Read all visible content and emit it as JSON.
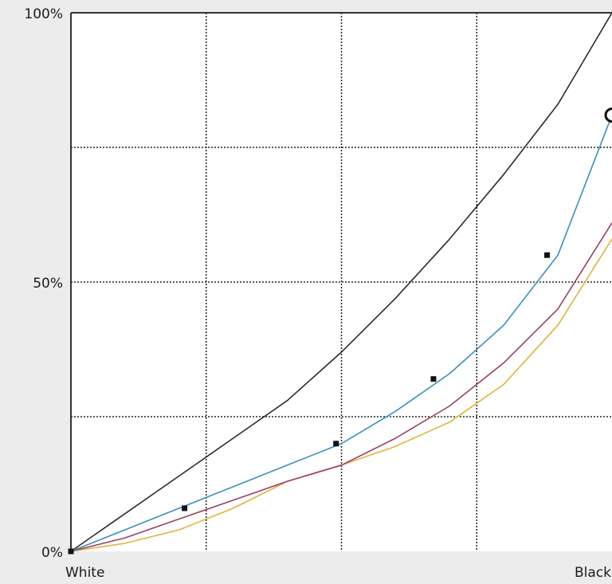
{
  "chart_data": {
    "type": "line",
    "title": "",
    "xlabel": "",
    "ylabel": "",
    "xlim": [
      0,
      100
    ],
    "ylim": [
      0,
      100
    ],
    "x_tick_labels": [
      {
        "x": 0,
        "label": "White"
      },
      {
        "x": 100,
        "label": "Black"
      }
    ],
    "y_tick_labels": [
      {
        "y": 100,
        "label": "100%"
      },
      {
        "y": 50,
        "label": "50%"
      },
      {
        "y": 0,
        "label": "0%"
      }
    ],
    "grid": true,
    "grid_style": "dotted",
    "x_gridlines": [
      25,
      50,
      75
    ],
    "y_gridlines": [
      25,
      50,
      75
    ],
    "legend": "none",
    "series": [
      {
        "color": "#2b2b2b",
        "x": [
          0,
          10,
          20,
          30,
          40,
          50,
          60,
          70,
          80,
          90,
          100
        ],
        "y": [
          0,
          7,
          14,
          21,
          28,
          37,
          47,
          58,
          70,
          83,
          100
        ]
      },
      {
        "color": "#3a8fc0",
        "x": [
          0,
          10,
          20,
          30,
          40,
          50,
          60,
          70,
          80,
          90,
          100
        ],
        "y": [
          0,
          4,
          8,
          12,
          16,
          20,
          26,
          33,
          42,
          55,
          81
        ]
      },
      {
        "color": "#9a3f66",
        "x": [
          0,
          10,
          20,
          30,
          40,
          50,
          60,
          70,
          80,
          90,
          100
        ],
        "y": [
          0,
          2.5,
          6,
          9.5,
          13,
          16,
          21,
          27,
          35,
          45,
          61
        ]
      },
      {
        "color": "#e0b33a",
        "x": [
          0,
          10,
          20,
          30,
          40,
          50,
          60,
          70,
          80,
          90,
          100
        ],
        "y": [
          0,
          1.5,
          4,
          8,
          13,
          16,
          19.5,
          24,
          31,
          42,
          58
        ]
      }
    ],
    "control_points": {
      "series_index": 1,
      "color": "#111111",
      "x": [
        0,
        21,
        49,
        67,
        88,
        100
      ],
      "y": [
        0,
        8,
        20,
        32,
        55,
        81
      ]
    }
  }
}
